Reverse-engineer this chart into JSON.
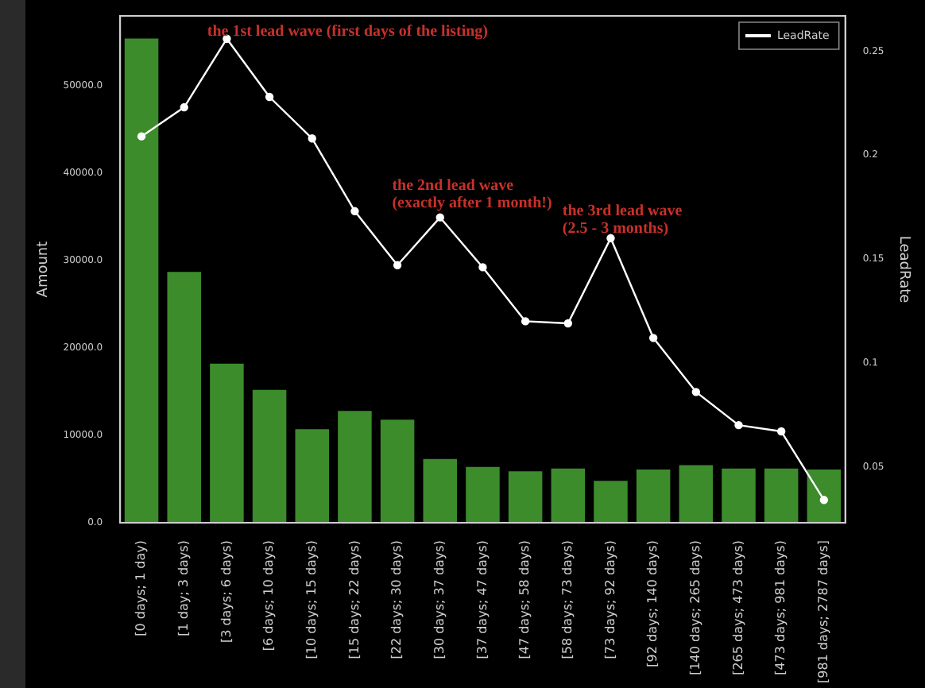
{
  "chart_data": {
    "type": "bar",
    "ylabel": "Amount",
    "y2label": "LeadRate",
    "categories": [
      "[0 days; 1 day)",
      "[1 day; 3 days)",
      "[3 days; 6 days)",
      "[6 days; 10 days)",
      "[10 days; 15 days)",
      "[15 days; 22 days)",
      "[22 days; 30 days)",
      "[30 days; 37 days)",
      "[37 days; 47 days)",
      "[47 days; 58 days)",
      "[58 days; 73 days)",
      "[73 days; 92 days)",
      "[92 days; 140 days)",
      "[140 days; 265 days)",
      "[265 days; 473 days)",
      "[473 days; 981 days)",
      "[981 days; 2787 days]"
    ],
    "series": [
      {
        "color": "#3c8c2c",
        "values": [
          55400,
          28700,
          18200,
          15200,
          10700,
          12800,
          11800,
          7300,
          6400,
          5900,
          6200,
          4800,
          6100,
          6600,
          6200,
          6200,
          6100
        ]
      },
      {
        "type": "line",
        "name": "LeadRate",
        "axis": "y2",
        "color": "#ffffff",
        "marker": "circle",
        "line_style": "solid",
        "values": [
          0.209,
          0.223,
          0.256,
          0.228,
          0.208,
          0.173,
          0.147,
          0.17,
          0.146,
          0.12,
          0.119,
          0.16,
          0.112,
          0.086,
          0.07,
          0.067,
          0.034
        ]
      }
    ],
    "ylim": [
      0,
      58000
    ],
    "yticks": [
      {
        "value": 0,
        "label": "0.0"
      },
      {
        "value": 10000,
        "label": "10000.0"
      },
      {
        "value": 20000,
        "label": "20000.0"
      },
      {
        "value": 30000,
        "label": "30000.0"
      },
      {
        "value": 40000,
        "label": "40000.0"
      },
      {
        "value": 50000,
        "label": "50000.0"
      }
    ],
    "y2lim": [
      0.023,
      0.267
    ],
    "y2ticks": [
      0.05,
      0.1,
      0.15,
      0.2,
      0.25
    ],
    "annotations": [
      "the 1st lead wave (first days of the listing)",
      "the 2nd lead wave\n(exactly after 1 month!)",
      "the 3rd lead wave\n(2.5 - 3 months)"
    ],
    "grid": false,
    "legend": "top right"
  }
}
